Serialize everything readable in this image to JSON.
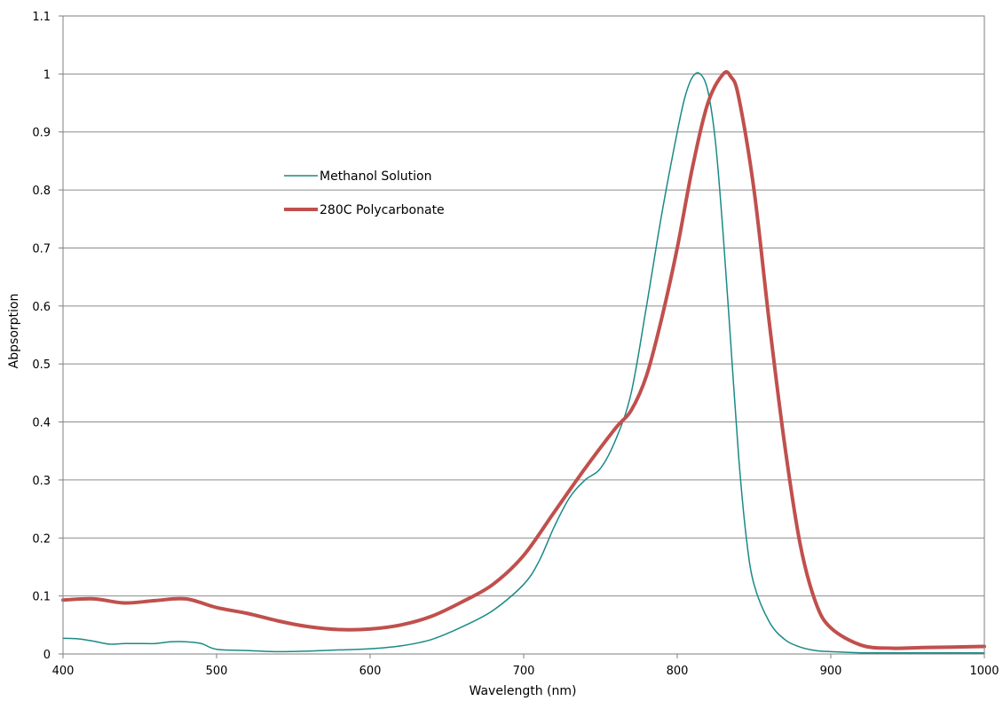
{
  "chart_data": {
    "type": "line",
    "title": "",
    "xlabel": "Wavelength (nm)",
    "ylabel": "Abpsorption",
    "xlim": [
      400,
      1000
    ],
    "ylim": [
      0,
      1.1
    ],
    "x_ticks": [
      "400",
      "500",
      "600",
      "700",
      "800",
      "900",
      "1000"
    ],
    "y_ticks": [
      "0",
      "0.1",
      "0.2",
      "0.3",
      "0.4",
      "0.5",
      "0.6",
      "0.7",
      "0.8",
      "0.9",
      "1",
      "1.1"
    ],
    "x_tick_values": [
      400,
      500,
      600,
      700,
      800,
      900,
      1000
    ],
    "y_tick_values": [
      0,
      0.1,
      0.2,
      0.3,
      0.4,
      0.5,
      0.6,
      0.7,
      0.8,
      0.9,
      1.0,
      1.1
    ],
    "grid": "horizontal",
    "legend_position": "upper-left",
    "series": [
      {
        "name": "Methanol Solution",
        "color": "#1a8a87",
        "x": [
          400,
          410,
          420,
          430,
          440,
          450,
          460,
          470,
          480,
          490,
          500,
          520,
          540,
          560,
          580,
          600,
          620,
          640,
          660,
          680,
          700,
          710,
          720,
          730,
          740,
          750,
          760,
          770,
          780,
          790,
          800,
          805,
          810,
          815,
          820,
          825,
          830,
          835,
          840,
          845,
          850,
          860,
          870,
          880,
          890,
          900,
          920,
          950,
          1000
        ],
        "y": [
          0.027,
          0.026,
          0.022,
          0.017,
          0.018,
          0.018,
          0.018,
          0.021,
          0.021,
          0.018,
          0.008,
          0.006,
          0.004,
          0.005,
          0.007,
          0.009,
          0.014,
          0.025,
          0.047,
          0.075,
          0.12,
          0.16,
          0.22,
          0.27,
          0.3,
          0.32,
          0.37,
          0.45,
          0.6,
          0.76,
          0.9,
          0.96,
          0.995,
          1.0,
          0.97,
          0.88,
          0.72,
          0.53,
          0.34,
          0.2,
          0.12,
          0.055,
          0.025,
          0.012,
          0.006,
          0.004,
          0.002,
          0.002,
          0.002
        ]
      },
      {
        "name": "280C Polycarbonate",
        "color": "#c0504d",
        "x": [
          400,
          420,
          440,
          460,
          480,
          500,
          520,
          540,
          560,
          580,
          600,
          620,
          640,
          660,
          680,
          700,
          720,
          740,
          760,
          770,
          780,
          790,
          800,
          810,
          820,
          830,
          835,
          840,
          850,
          860,
          870,
          880,
          890,
          900,
          920,
          940,
          960,
          1000
        ],
        "y": [
          0.093,
          0.095,
          0.088,
          0.092,
          0.095,
          0.08,
          0.07,
          0.057,
          0.047,
          0.042,
          0.043,
          0.05,
          0.065,
          0.09,
          0.12,
          0.17,
          0.245,
          0.32,
          0.39,
          0.42,
          0.48,
          0.58,
          0.7,
          0.84,
          0.95,
          1.0,
          0.995,
          0.96,
          0.8,
          0.57,
          0.36,
          0.19,
          0.09,
          0.045,
          0.015,
          0.01,
          0.011,
          0.013
        ]
      }
    ]
  }
}
